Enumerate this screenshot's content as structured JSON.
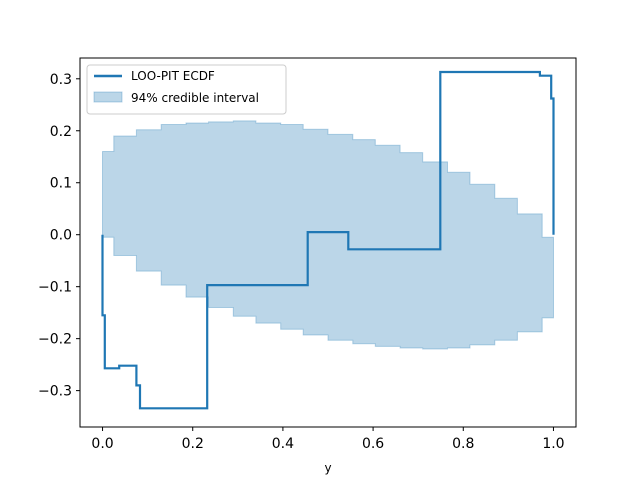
{
  "chart_data": {
    "type": "line",
    "title": "",
    "xlabel": "y",
    "ylabel": "",
    "xlim": [
      -0.05,
      1.05
    ],
    "ylim": [
      -0.37,
      0.34
    ],
    "xticks": [
      0.0,
      0.2,
      0.4,
      0.6,
      0.8,
      1.0
    ],
    "xtick_labels": [
      "0.0",
      "0.2",
      "0.4",
      "0.6",
      "0.8",
      "1.0"
    ],
    "yticks": [
      -0.3,
      -0.2,
      -0.1,
      0.0,
      0.1,
      0.2,
      0.3
    ],
    "ytick_labels": [
      "−0.3",
      "−0.2",
      "−0.1",
      "0.0",
      "0.1",
      "0.2",
      "0.3"
    ],
    "grid": false,
    "legend_position": "top-left",
    "series": [
      {
        "name": "LOO-PIT ECDF",
        "kind": "step-line",
        "color": "#1f77b4",
        "points": [
          [
            0.0,
            0.0
          ],
          [
            0.0,
            -0.155
          ],
          [
            0.005,
            -0.155
          ],
          [
            0.005,
            -0.257
          ],
          [
            0.037,
            -0.257
          ],
          [
            0.037,
            -0.252
          ],
          [
            0.075,
            -0.252
          ],
          [
            0.075,
            -0.29
          ],
          [
            0.083,
            -0.29
          ],
          [
            0.083,
            -0.334
          ],
          [
            0.232,
            -0.334
          ],
          [
            0.232,
            -0.097
          ],
          [
            0.455,
            -0.097
          ],
          [
            0.455,
            0.005
          ],
          [
            0.545,
            0.005
          ],
          [
            0.545,
            -0.028
          ],
          [
            0.749,
            -0.028
          ],
          [
            0.749,
            0.313
          ],
          [
            0.97,
            0.313
          ],
          [
            0.97,
            0.306
          ],
          [
            0.995,
            0.306
          ],
          [
            0.995,
            0.262
          ],
          [
            1.0,
            0.262
          ],
          [
            1.0,
            0.0
          ]
        ]
      },
      {
        "name": "94% credible interval",
        "kind": "step-band",
        "color": "#1f77b4",
        "fill_opacity": 0.3,
        "bands": [
          [
            0.0,
            0.025,
            -0.005,
            0.16
          ],
          [
            0.025,
            0.075,
            -0.04,
            0.19
          ],
          [
            0.075,
            0.13,
            -0.07,
            0.202
          ],
          [
            0.13,
            0.185,
            -0.097,
            0.212
          ],
          [
            0.185,
            0.235,
            -0.12,
            0.215
          ],
          [
            0.235,
            0.29,
            -0.14,
            0.217
          ],
          [
            0.29,
            0.34,
            -0.157,
            0.219
          ],
          [
            0.34,
            0.395,
            -0.17,
            0.215
          ],
          [
            0.395,
            0.445,
            -0.182,
            0.212
          ],
          [
            0.445,
            0.5,
            -0.193,
            0.203
          ],
          [
            0.5,
            0.555,
            -0.203,
            0.193
          ],
          [
            0.555,
            0.605,
            -0.21,
            0.183
          ],
          [
            0.605,
            0.66,
            -0.215,
            0.172
          ],
          [
            0.66,
            0.71,
            -0.218,
            0.158
          ],
          [
            0.71,
            0.765,
            -0.22,
            0.14
          ],
          [
            0.765,
            0.815,
            -0.218,
            0.12
          ],
          [
            0.815,
            0.87,
            -0.212,
            0.097
          ],
          [
            0.87,
            0.92,
            -0.203,
            0.07
          ],
          [
            0.92,
            0.975,
            -0.187,
            0.04
          ],
          [
            0.975,
            1.0,
            -0.16,
            -0.005
          ]
        ]
      }
    ]
  }
}
